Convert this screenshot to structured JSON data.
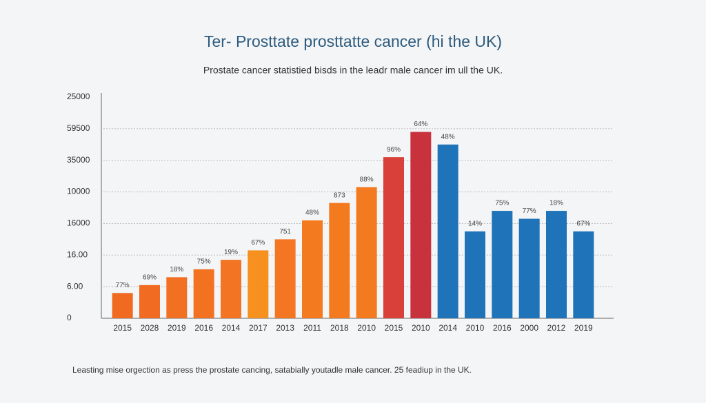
{
  "chart_data": {
    "type": "bar",
    "title": "Ter- Prosttate prosttatte cancer (hi the UK)",
    "subtitle": "Prostate cancer statistied bisds in the leadr male cancer im ull the UK.",
    "footnote": "Leasting mise orgection as press the prostate cancing, satabially youtadle male cancer. 25 feadiup in the UK.",
    "categories": [
      "2015",
      "2028",
      "2019",
      "2016",
      "2014",
      "2017",
      "2013",
      "2011",
      "2018",
      "2010",
      "2015",
      "2010",
      "2014",
      "2010",
      "2016",
      "2000",
      "2012",
      "2019"
    ],
    "values": [
      0.8,
      1.05,
      1.3,
      1.55,
      1.85,
      2.15,
      2.5,
      3.1,
      3.65,
      4.15,
      5.1,
      5.9,
      5.5,
      2.75,
      3.4,
      3.15,
      3.4,
      2.75
    ],
    "data_labels": [
      "77%",
      "69%",
      "18%",
      "75%",
      "19%",
      "67%",
      "751",
      "48%",
      "873",
      "88%",
      "96%",
      "64%",
      "48%",
      "14%",
      "75%",
      "77%",
      "18%",
      "67%"
    ],
    "colors": [
      "#f06a22",
      "#f16c22",
      "#f27022",
      "#f27222",
      "#f37422",
      "#f6901e",
      "#f47622",
      "#f47a20",
      "#f47a20",
      "#f47a20",
      "#d9403a",
      "#c8323d",
      "#1f73b8",
      "#1f73b8",
      "#1f73b8",
      "#1f73b8",
      "#1f73b8",
      "#1f73b8"
    ],
    "ylim": [
      0,
      7
    ],
    "yticks": [
      0,
      {
        "value": 1,
        "label": "6.00"
      },
      {
        "value": 2,
        "label": "16.00"
      },
      {
        "value": 3,
        "label": "16000"
      },
      {
        "value": 4,
        "label": "10000"
      },
      {
        "value": 5,
        "label": "35000"
      },
      {
        "value": 6,
        "label": "59500"
      },
      {
        "value": 7,
        "label": "25000"
      }
    ],
    "grid": true
  }
}
